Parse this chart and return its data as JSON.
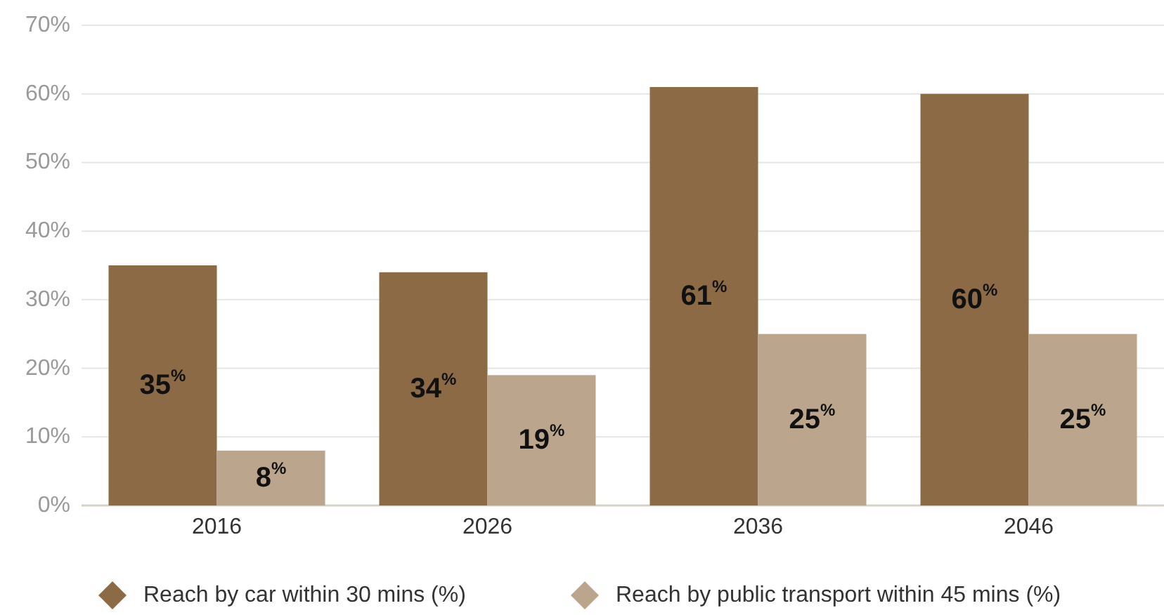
{
  "chart_data": {
    "type": "bar",
    "categories": [
      "2016",
      "2026",
      "2036",
      "2046"
    ],
    "series": [
      {
        "name": "Reach by car within 30 mins (%)",
        "color": "#8b6a45",
        "values": [
          35,
          34,
          61,
          60
        ],
        "value_labels": [
          "35$^{%}$",
          "34$^{%}$",
          "61$^{%}$",
          "60$^{%}$"
        ]
      },
      {
        "name": "Reach by public transport within 45 mins (%)",
        "color": "#bba68d",
        "values": [
          8,
          19,
          25,
          25
        ],
        "value_labels": [
          "8$^{%}$",
          "19$^{%}$",
          "25$^{%}$",
          "25$^{%}$"
        ]
      }
    ],
    "ylim": [
      0,
      70
    ],
    "yticks": [
      {
        "value": 0,
        "label": "0%"
      },
      {
        "value": 10,
        "label": "10%"
      },
      {
        "value": 20,
        "label": "20%"
      },
      {
        "value": 30,
        "label": "30%"
      },
      {
        "value": 40,
        "label": "40%"
      },
      {
        "value": 50,
        "label": "50%"
      },
      {
        "value": 60,
        "label": "60%"
      },
      {
        "value": 70,
        "label": "70%"
      }
    ],
    "grid": "y",
    "legend": "bottom"
  }
}
